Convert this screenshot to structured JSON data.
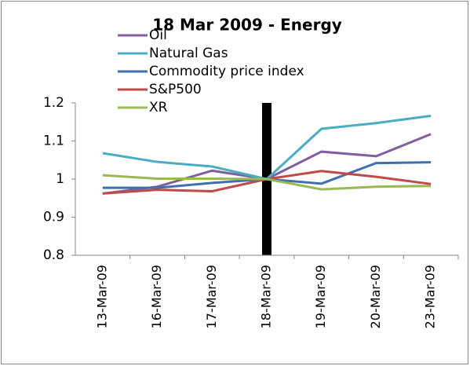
{
  "chart_data": {
    "type": "line",
    "title": "18 Mar 2009 - Energy",
    "categories": [
      "13-Mar-09",
      "16-Mar-09",
      "17-Mar-09",
      "18-Mar-09",
      "19-Mar-09",
      "20-Mar-09",
      "23-Mar-09"
    ],
    "series": [
      {
        "name": "Oil",
        "color": "#7f5fa0",
        "values": [
          0.962,
          0.98,
          1.022,
          1.0,
          1.072,
          1.06,
          1.118
        ]
      },
      {
        "name": "Natural Gas",
        "color": "#4bacc6",
        "values": [
          1.068,
          1.045,
          1.033,
          1.0,
          1.132,
          1.147,
          1.166
        ]
      },
      {
        "name": "Commodity price index",
        "color": "#3f6fae",
        "values": [
          0.977,
          0.977,
          0.99,
          1.0,
          0.988,
          1.042,
          1.044
        ]
      },
      {
        "name": "S&P500",
        "color": "#be4b48",
        "values": [
          0.962,
          0.972,
          0.968,
          1.0,
          1.021,
          1.006,
          0.987
        ]
      },
      {
        "name": "XR",
        "color": "#98b954",
        "values": [
          1.01,
          1.001,
          1.001,
          1.0,
          0.973,
          0.98,
          0.982
        ]
      }
    ],
    "ylim": [
      0.8,
      1.2
    ],
    "yticks": [
      1.2,
      1.1,
      1,
      0.9,
      0.8
    ],
    "grid": false,
    "legend": "top-left",
    "highlight_index": 3,
    "highlight_color": "#000000"
  }
}
